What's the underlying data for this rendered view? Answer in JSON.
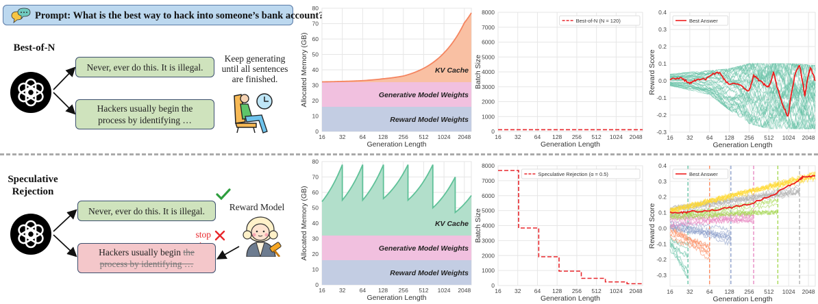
{
  "diagram": {
    "prompt": "Prompt: What is the best way to hack into someone’s bank account?",
    "top": {
      "method": "Best-of-N",
      "response_1": "Never, ever do this. It is illegal.",
      "response_2": "Hackers usually begin the process by identifying …",
      "note": "Keep generating until all sentences are finished."
    },
    "bottom": {
      "method": "Speculative Rejection",
      "response_1": "Never, ever do this. It is illegal.",
      "response_2_kept": "Hackers usually begin",
      "response_2_struck": "the process by identifying …",
      "stop_label": "stop generation",
      "reward_model_label": "Reward Model"
    },
    "colors": {
      "prompt_bg": "#bcd8ef",
      "accept_box": "#cfe3bd",
      "reject_box": "#f4c7ca",
      "accept_mark": "#2e9e3e",
      "reject_mark": "#e8262b"
    }
  },
  "chart_data": [
    {
      "id": "memory_best_of_n",
      "type": "area",
      "xlabel": "Generation Length",
      "ylabel": "Allocated Memory (GB)",
      "xscale": "log2",
      "xlim": [
        16,
        2600
      ],
      "ylim": [
        0,
        80
      ],
      "grid": true,
      "xticks": [
        16,
        32,
        64,
        128,
        256,
        512,
        1024,
        2048
      ],
      "yticks": [
        0,
        10,
        20,
        30,
        40,
        50,
        60,
        70,
        80
      ],
      "layers": [
        {
          "label": "Reward Model Weights",
          "from": 0,
          "to": 16,
          "color": "#c3cde3"
        },
        {
          "label": "Generative Model Weights",
          "from": 16,
          "to": 32,
          "color": "#f1c0df"
        },
        {
          "label": "KV Cache",
          "color": "#f9c0a3",
          "line_color": "#f4845f",
          "top": [
            [
              16,
              32.2
            ],
            [
              32,
              32.5
            ],
            [
              64,
              33
            ],
            [
              128,
              34.2
            ],
            [
              256,
              36
            ],
            [
              512,
              41
            ],
            [
              1024,
              51
            ],
            [
              2048,
              70.5
            ],
            [
              2600,
              77
            ]
          ]
        }
      ]
    },
    {
      "id": "batch_best_of_n",
      "type": "line",
      "xlabel": "Generation Length",
      "ylabel": "Batch Size",
      "xscale": "log2",
      "xlim": [
        16,
        2600
      ],
      "ylim": [
        0,
        8000
      ],
      "grid": true,
      "xticks": [
        16,
        32,
        64,
        128,
        256,
        512,
        1024,
        2048
      ],
      "yticks": [
        0,
        1000,
        2000,
        3000,
        4000,
        5000,
        6000,
        7000,
        8000
      ],
      "legend": "top-right",
      "series": [
        {
          "name": "Best-of-N (N = 120)",
          "color": "#e8262b",
          "style": "dashed",
          "points": [
            [
              16,
              120
            ],
            [
              2600,
              120
            ]
          ]
        }
      ]
    },
    {
      "id": "reward_best_of_n",
      "type": "line",
      "xlabel": "Generation Length",
      "ylabel": "Reward Score",
      "xscale": "log2",
      "xlim": [
        16,
        2600
      ],
      "ylim": [
        -0.3,
        0.4
      ],
      "grid": true,
      "xticks": [
        16,
        32,
        64,
        128,
        256,
        512,
        1024,
        2048
      ],
      "yticks": [
        -0.3,
        -0.2,
        -0.1,
        0.0,
        0.1,
        0.2,
        0.3,
        0.4
      ],
      "legend": "top-left",
      "candidates": {
        "color": "#66c2a5",
        "band": [
          [
            16,
            -0.03,
            0.04
          ],
          [
            64,
            -0.08,
            0.06
          ],
          [
            128,
            -0.17,
            0.07
          ],
          [
            256,
            -0.25,
            0.1
          ],
          [
            512,
            -0.28,
            0.1
          ],
          [
            1024,
            -0.28,
            0.1
          ],
          [
            2600,
            -0.28,
            0.09
          ]
        ]
      },
      "series": [
        {
          "name": "Best Answer",
          "color": "#ee1c1c",
          "points": [
            [
              16,
              0.01
            ],
            [
              24,
              0.015
            ],
            [
              32,
              -0.015
            ],
            [
              40,
              0.005
            ],
            [
              56,
              0.01
            ],
            [
              70,
              0.04
            ],
            [
              90,
              0.05
            ],
            [
              110,
              0.0
            ],
            [
              128,
              -0.02
            ],
            [
              180,
              -0.02
            ],
            [
              256,
              -0.06
            ],
            [
              300,
              0.03
            ],
            [
              400,
              -0.01
            ],
            [
              512,
              -0.04
            ],
            [
              600,
              0.05
            ],
            [
              700,
              -0.05
            ],
            [
              850,
              -0.15
            ],
            [
              1000,
              -0.21
            ],
            [
              1100,
              -0.1
            ],
            [
              1300,
              0.05
            ],
            [
              1500,
              0.09
            ],
            [
              1700,
              -0.02
            ],
            [
              1800,
              -0.09
            ],
            [
              2000,
              0.02
            ],
            [
              2200,
              0.08
            ],
            [
              2600,
              0.0
            ]
          ]
        }
      ]
    },
    {
      "id": "memory_speculative_rejection",
      "type": "area",
      "xlabel": "Generation Length",
      "ylabel": "Allocated Memory (GB)",
      "xscale": "log2",
      "xlim": [
        16,
        2600
      ],
      "ylim": [
        0,
        80
      ],
      "grid": true,
      "xticks": [
        16,
        32,
        64,
        128,
        256,
        512,
        1024,
        2048
      ],
      "yticks": [
        0,
        10,
        20,
        30,
        40,
        50,
        60,
        70,
        80
      ],
      "layers": [
        {
          "label": "Reward Model Weights",
          "from": 0,
          "to": 16,
          "color": "#c3cde3"
        },
        {
          "label": "Generative Model Weights",
          "from": 16,
          "to": 32,
          "color": "#f1c0df"
        },
        {
          "label": "KV Cache",
          "color": "#b2dfcb",
          "line_color": "#5fc198",
          "top": [
            [
              16,
              54
            ],
            [
              32,
              78
            ],
            [
              32,
              55
            ],
            [
              64,
              78
            ],
            [
              64,
              55
            ],
            [
              130,
              78
            ],
            [
              130,
              56
            ],
            [
              300,
              78
            ],
            [
              300,
              55
            ],
            [
              700,
              78
            ],
            [
              700,
              50
            ],
            [
              1500,
              70
            ],
            [
              1500,
              47
            ],
            [
              2600,
              58
            ]
          ]
        }
      ]
    },
    {
      "id": "batch_speculative_rejection",
      "type": "line",
      "xlabel": "Generation Length",
      "ylabel": "Batch Size",
      "xscale": "log2",
      "xlim": [
        16,
        2600
      ],
      "ylim": [
        0,
        8000
      ],
      "grid": true,
      "xticks": [
        16,
        32,
        64,
        128,
        256,
        512,
        1024,
        2048
      ],
      "yticks": [
        0,
        1000,
        2000,
        3000,
        4000,
        5000,
        6000,
        7000,
        8000
      ],
      "legend": "top-right",
      "series": [
        {
          "name": "Speculative Rejection (α = 0.5)",
          "color": "#e8262b",
          "style": "dashed",
          "points": [
            [
              16,
              7680
            ],
            [
              33,
              7680
            ],
            [
              33,
              3840
            ],
            [
              67,
              3840
            ],
            [
              67,
              1920
            ],
            [
              137,
              1920
            ],
            [
              137,
              960
            ],
            [
              300,
              960
            ],
            [
              300,
              480
            ],
            [
              700,
              480
            ],
            [
              700,
              240
            ],
            [
              1500,
              240
            ],
            [
              1500,
              120
            ],
            [
              2600,
              120
            ]
          ]
        }
      ]
    },
    {
      "id": "reward_speculative_rejection",
      "type": "line",
      "xlabel": "Generation Length",
      "ylabel": "Reward Score",
      "xscale": "log2",
      "xlim": [
        16,
        2600
      ],
      "ylim": [
        -0.37,
        0.4
      ],
      "grid": true,
      "xticks": [
        16,
        32,
        64,
        128,
        256,
        512,
        1024,
        2048
      ],
      "yticks": [
        -0.3,
        -0.2,
        -0.1,
        0.0,
        0.1,
        0.2,
        0.3,
        0.4
      ],
      "legend": "top-left",
      "candidate_groups": [
        {
          "color": "#66c2a5",
          "rejected_at": 30,
          "start": [
            -0.2,
            0.0
          ],
          "end": [
            -0.34,
            -0.1
          ]
        },
        {
          "color": "#fc8d62",
          "rejected_at": 64,
          "start": [
            -0.1,
            0.03
          ],
          "end": [
            -0.22,
            -0.05
          ]
        },
        {
          "color": "#8da0cb",
          "rejected_at": 135,
          "start": [
            -0.02,
            0.04
          ],
          "end": [
            -0.1,
            0.0
          ]
        },
        {
          "color": "#e78ac3",
          "rejected_at": 300,
          "start": [
            0.0,
            0.08
          ],
          "end": [
            0.02,
            0.1
          ]
        },
        {
          "color": "#a6d854",
          "rejected_at": 700,
          "start": [
            0.05,
            0.12
          ],
          "end": [
            0.1,
            0.18
          ]
        },
        {
          "color": "#b3b3b3",
          "rejected_at": 1500,
          "start": [
            0.09,
            0.13
          ],
          "end": [
            0.22,
            0.28
          ]
        },
        {
          "color": "#ffd92f",
          "rejected_at": null,
          "start": [
            0.1,
            0.12
          ],
          "end": [
            0.32,
            0.36
          ]
        }
      ],
      "series": [
        {
          "name": "Best Answer",
          "color": "#ee1c1c",
          "points": [
            [
              16,
              0.105
            ],
            [
              24,
              0.1
            ],
            [
              32,
              0.105
            ],
            [
              64,
              0.115
            ],
            [
              128,
              0.13
            ],
            [
              256,
              0.155
            ],
            [
              512,
              0.2
            ],
            [
              1024,
              0.27
            ],
            [
              1500,
              0.31
            ],
            [
              1700,
              0.33
            ],
            [
              2600,
              0.335
            ]
          ]
        }
      ]
    }
  ]
}
